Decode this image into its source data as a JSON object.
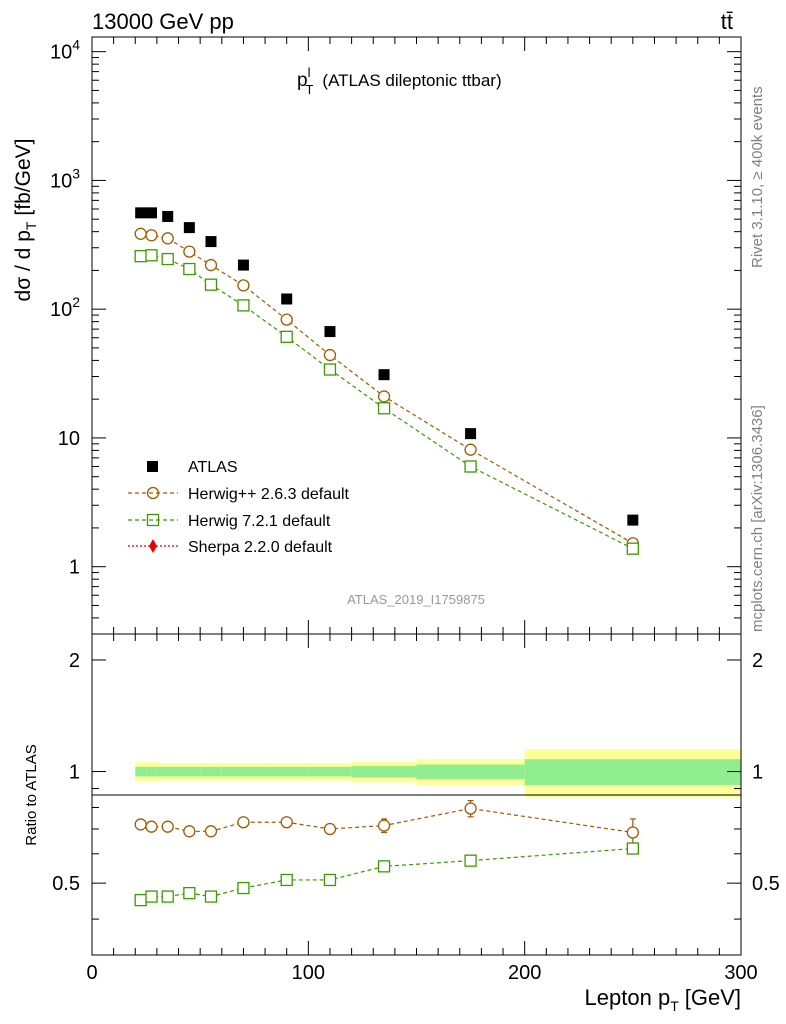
{
  "header": {
    "energy_label": "13000 GeV pp",
    "process_label": "tt̄"
  },
  "main_panel": {
    "title_symbol": "p",
    "title_sup": "l",
    "title_sub": "T",
    "title_rest": "(ATLAS dileptonic ttbar)",
    "ylabel_main": "dσ / d p",
    "ylabel_sub": "T",
    "ylabel_units": "[fb/GeV]",
    "watermark": "ATLAS_2019_I1759875",
    "side_text_top": "Rivet 3.1.10, ≥ 400k events",
    "side_text_bottom": "mcplots.cern.ch [arXiv:1306.3436]"
  },
  "ratio_panel": {
    "ylabel": "Ratio to ATLAS"
  },
  "xaxis": {
    "label_main": "Lepton p",
    "label_sub": "T",
    "label_units": "[GeV]"
  },
  "legend": {
    "data": "ATLAS",
    "mc1": "Herwig++ 2.6.3 default",
    "mc2": "Herwig 7.2.1 default",
    "mc3": "Sherpa 2.2.0 default"
  },
  "colors": {
    "data": "#000000",
    "mc1": "#a05a00",
    "mc2": "#3c9a00",
    "mc3": "#ee0000",
    "band_inner": "#90ee90",
    "band_outer": "#ffff99"
  },
  "chart_data": {
    "type": "scatter",
    "xlim": [
      0,
      300
    ],
    "ylim": [
      0.3,
      13000
    ],
    "ylim_ratio": [
      0.32,
      2.35
    ],
    "yscale": "log",
    "x_ticks": [
      0,
      100,
      200,
      300
    ],
    "y_ticks_main": [
      "1",
      "10",
      "10^2",
      "10^3",
      "10^4"
    ],
    "y_ticks_ratio": [
      "0.5",
      "1",
      "2"
    ],
    "x": [
      22.5,
      27.5,
      35,
      45,
      55,
      70,
      90,
      110,
      135,
      175,
      250
    ],
    "bin_edges": [
      20,
      25,
      30,
      40,
      50,
      60,
      80,
      100,
      120,
      150,
      200,
      300
    ],
    "series": [
      {
        "name": "ATLAS",
        "values": [
          560,
          560,
          525,
          430,
          335,
          220,
          120,
          67,
          31,
          10.8,
          2.3
        ]
      },
      {
        "name": "Herwig++ 2.6.3 default",
        "values": [
          385,
          375,
          355,
          280,
          220,
          153,
          83,
          44,
          21,
          8.1,
          1.52
        ]
      },
      {
        "name": "Herwig 7.2.1 default",
        "values": [
          258,
          262,
          245,
          205,
          155,
          107,
          61,
          34,
          17,
          6.0,
          1.38
        ]
      },
      {
        "name": "Sherpa 2.2.0 default",
        "values": []
      }
    ],
    "ratio_series": [
      {
        "name": "Herwig++ 2.6.3 default",
        "values": [
          0.72,
          0.71,
          0.71,
          0.69,
          0.69,
          0.73,
          0.73,
          0.7,
          0.715,
          0.795,
          0.685
        ],
        "errors": [
          0.01,
          0.01,
          0.01,
          0.01,
          0.01,
          0.01,
          0.012,
          0.02,
          0.03,
          0.04,
          0.06
        ]
      },
      {
        "name": "Herwig 7.2.1 default",
        "values": [
          0.45,
          0.46,
          0.46,
          0.47,
          0.46,
          0.485,
          0.51,
          0.51,
          0.555,
          0.575,
          0.62
        ],
        "errors": [
          0.005,
          0.005,
          0.005,
          0.006,
          0.006,
          0.007,
          0.008,
          0.01,
          0.012,
          0.014,
          0.02
        ]
      }
    ],
    "uncertainty_band": {
      "inner_half_width": [
        0.03,
        0.03,
        0.03,
        0.03,
        0.03,
        0.03,
        0.03,
        0.03,
        0.035,
        0.045,
        0.08
      ],
      "outer_half_width": [
        0.06,
        0.06,
        0.055,
        0.055,
        0.055,
        0.055,
        0.055,
        0.055,
        0.065,
        0.08,
        0.15
      ]
    }
  }
}
